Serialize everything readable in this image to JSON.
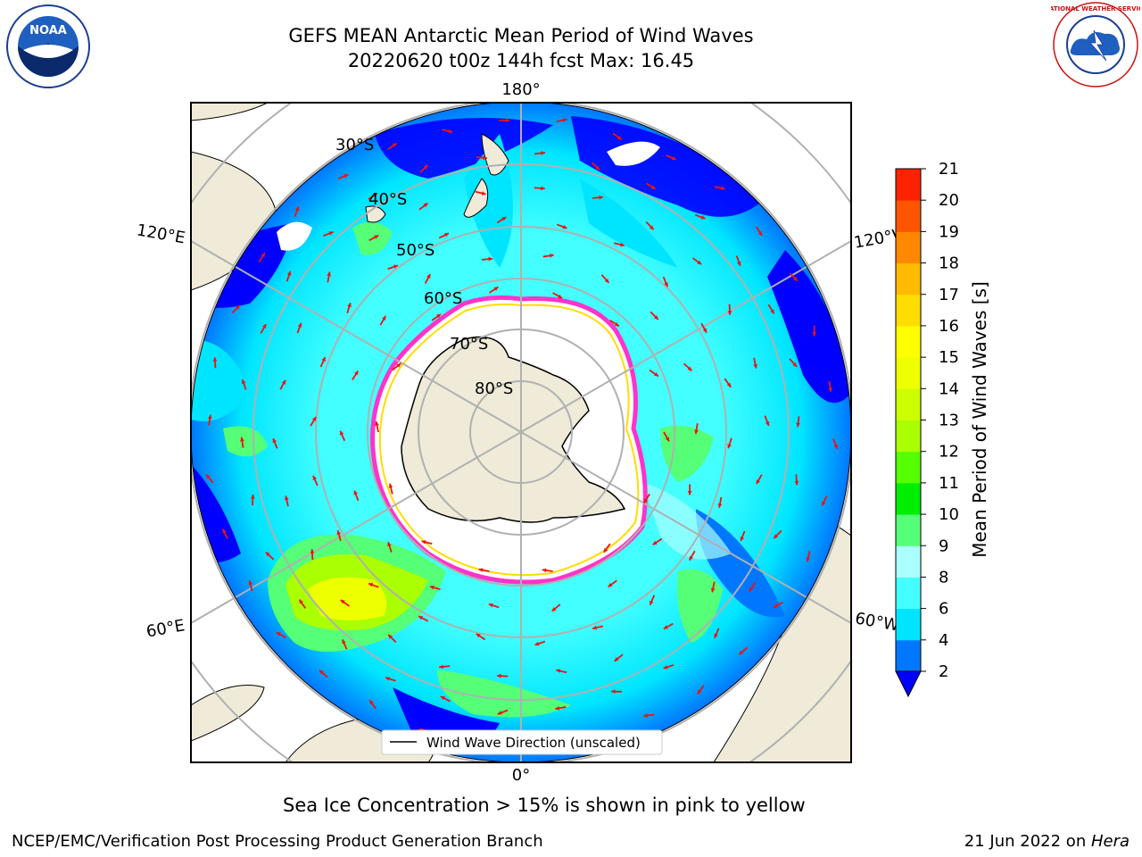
{
  "header": {
    "title_line1": "GEFS MEAN Antarctic Mean Period of Wind Waves",
    "title_line2": "20220620 t00z 144h fcst   Max: 16.45"
  },
  "logos": {
    "left": {
      "name": "noaa-logo",
      "text": "NOAA"
    },
    "right": {
      "name": "national-weather-service-logo",
      "text": "NATIONAL WEATHER SERVICE"
    }
  },
  "map": {
    "longitude_labels": {
      "top": "180°",
      "bottom": "0°",
      "upper_left": "120°E",
      "upper_right": "120°W",
      "lower_left": "60°E",
      "lower_right": "60°W"
    },
    "latitude_labels": [
      "30°S",
      "40°S",
      "50°S",
      "60°S",
      "70°S",
      "80°S"
    ],
    "legend_label": "Wind Wave Direction (unscaled)"
  },
  "colorbar": {
    "label": "Mean Period of Wind Waves [s]",
    "ticks": [
      "2",
      "4",
      "6",
      "8",
      "9",
      "10",
      "11",
      "12",
      "13",
      "14",
      "15",
      "16",
      "17",
      "18",
      "19",
      "20",
      "21"
    ],
    "colors": [
      "#0077ff",
      "#00e5ff",
      "#44ffff",
      "#aaffff",
      "#55ff77",
      "#00ee00",
      "#55ff00",
      "#aaff00",
      "#ccff00",
      "#eeff00",
      "#ffff00",
      "#ffdd00",
      "#ffbb00",
      "#ff8800",
      "#ff5500",
      "#ff2200"
    ],
    "extend_color": "#0000ff"
  },
  "caption": "Sea Ice Concentration > 15% is shown in pink to yellow",
  "footer": {
    "left": "NCEP/EMC/Verification Post Processing Product Generation Branch",
    "right_prefix": "21 Jun 2022 on ",
    "right_host": "Hera"
  }
}
